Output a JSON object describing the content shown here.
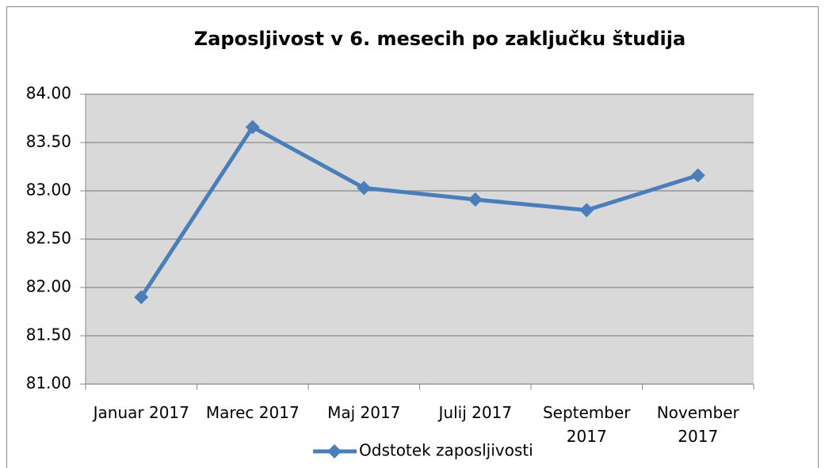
{
  "chart_data": {
    "type": "line",
    "title": "Zaposljivost v 6. mesecih po zaključku študija",
    "categories": [
      "Januar 2017",
      "Marec 2017",
      "Maj 2017",
      "Julij 2017",
      "September 2017",
      "November 2017"
    ],
    "series": [
      {
        "name": "Odstotek zaposljivosti",
        "color": "#4a7ebb",
        "values": [
          81.9,
          83.66,
          83.03,
          82.91,
          82.8,
          83.16
        ]
      }
    ],
    "ylim": [
      81,
      84
    ],
    "yticks": [
      {
        "value": 81,
        "label": "81.00"
      },
      {
        "value": 81.5,
        "label": "81.50"
      },
      {
        "value": 82,
        "label": "82.00"
      },
      {
        "value": 82.5,
        "label": "82.50"
      },
      {
        "value": 83,
        "label": "83.00"
      },
      {
        "value": 83.5,
        "label": "83.50"
      },
      {
        "value": 84,
        "label": "84.00"
      }
    ],
    "grid": true,
    "legend": "bottom"
  }
}
